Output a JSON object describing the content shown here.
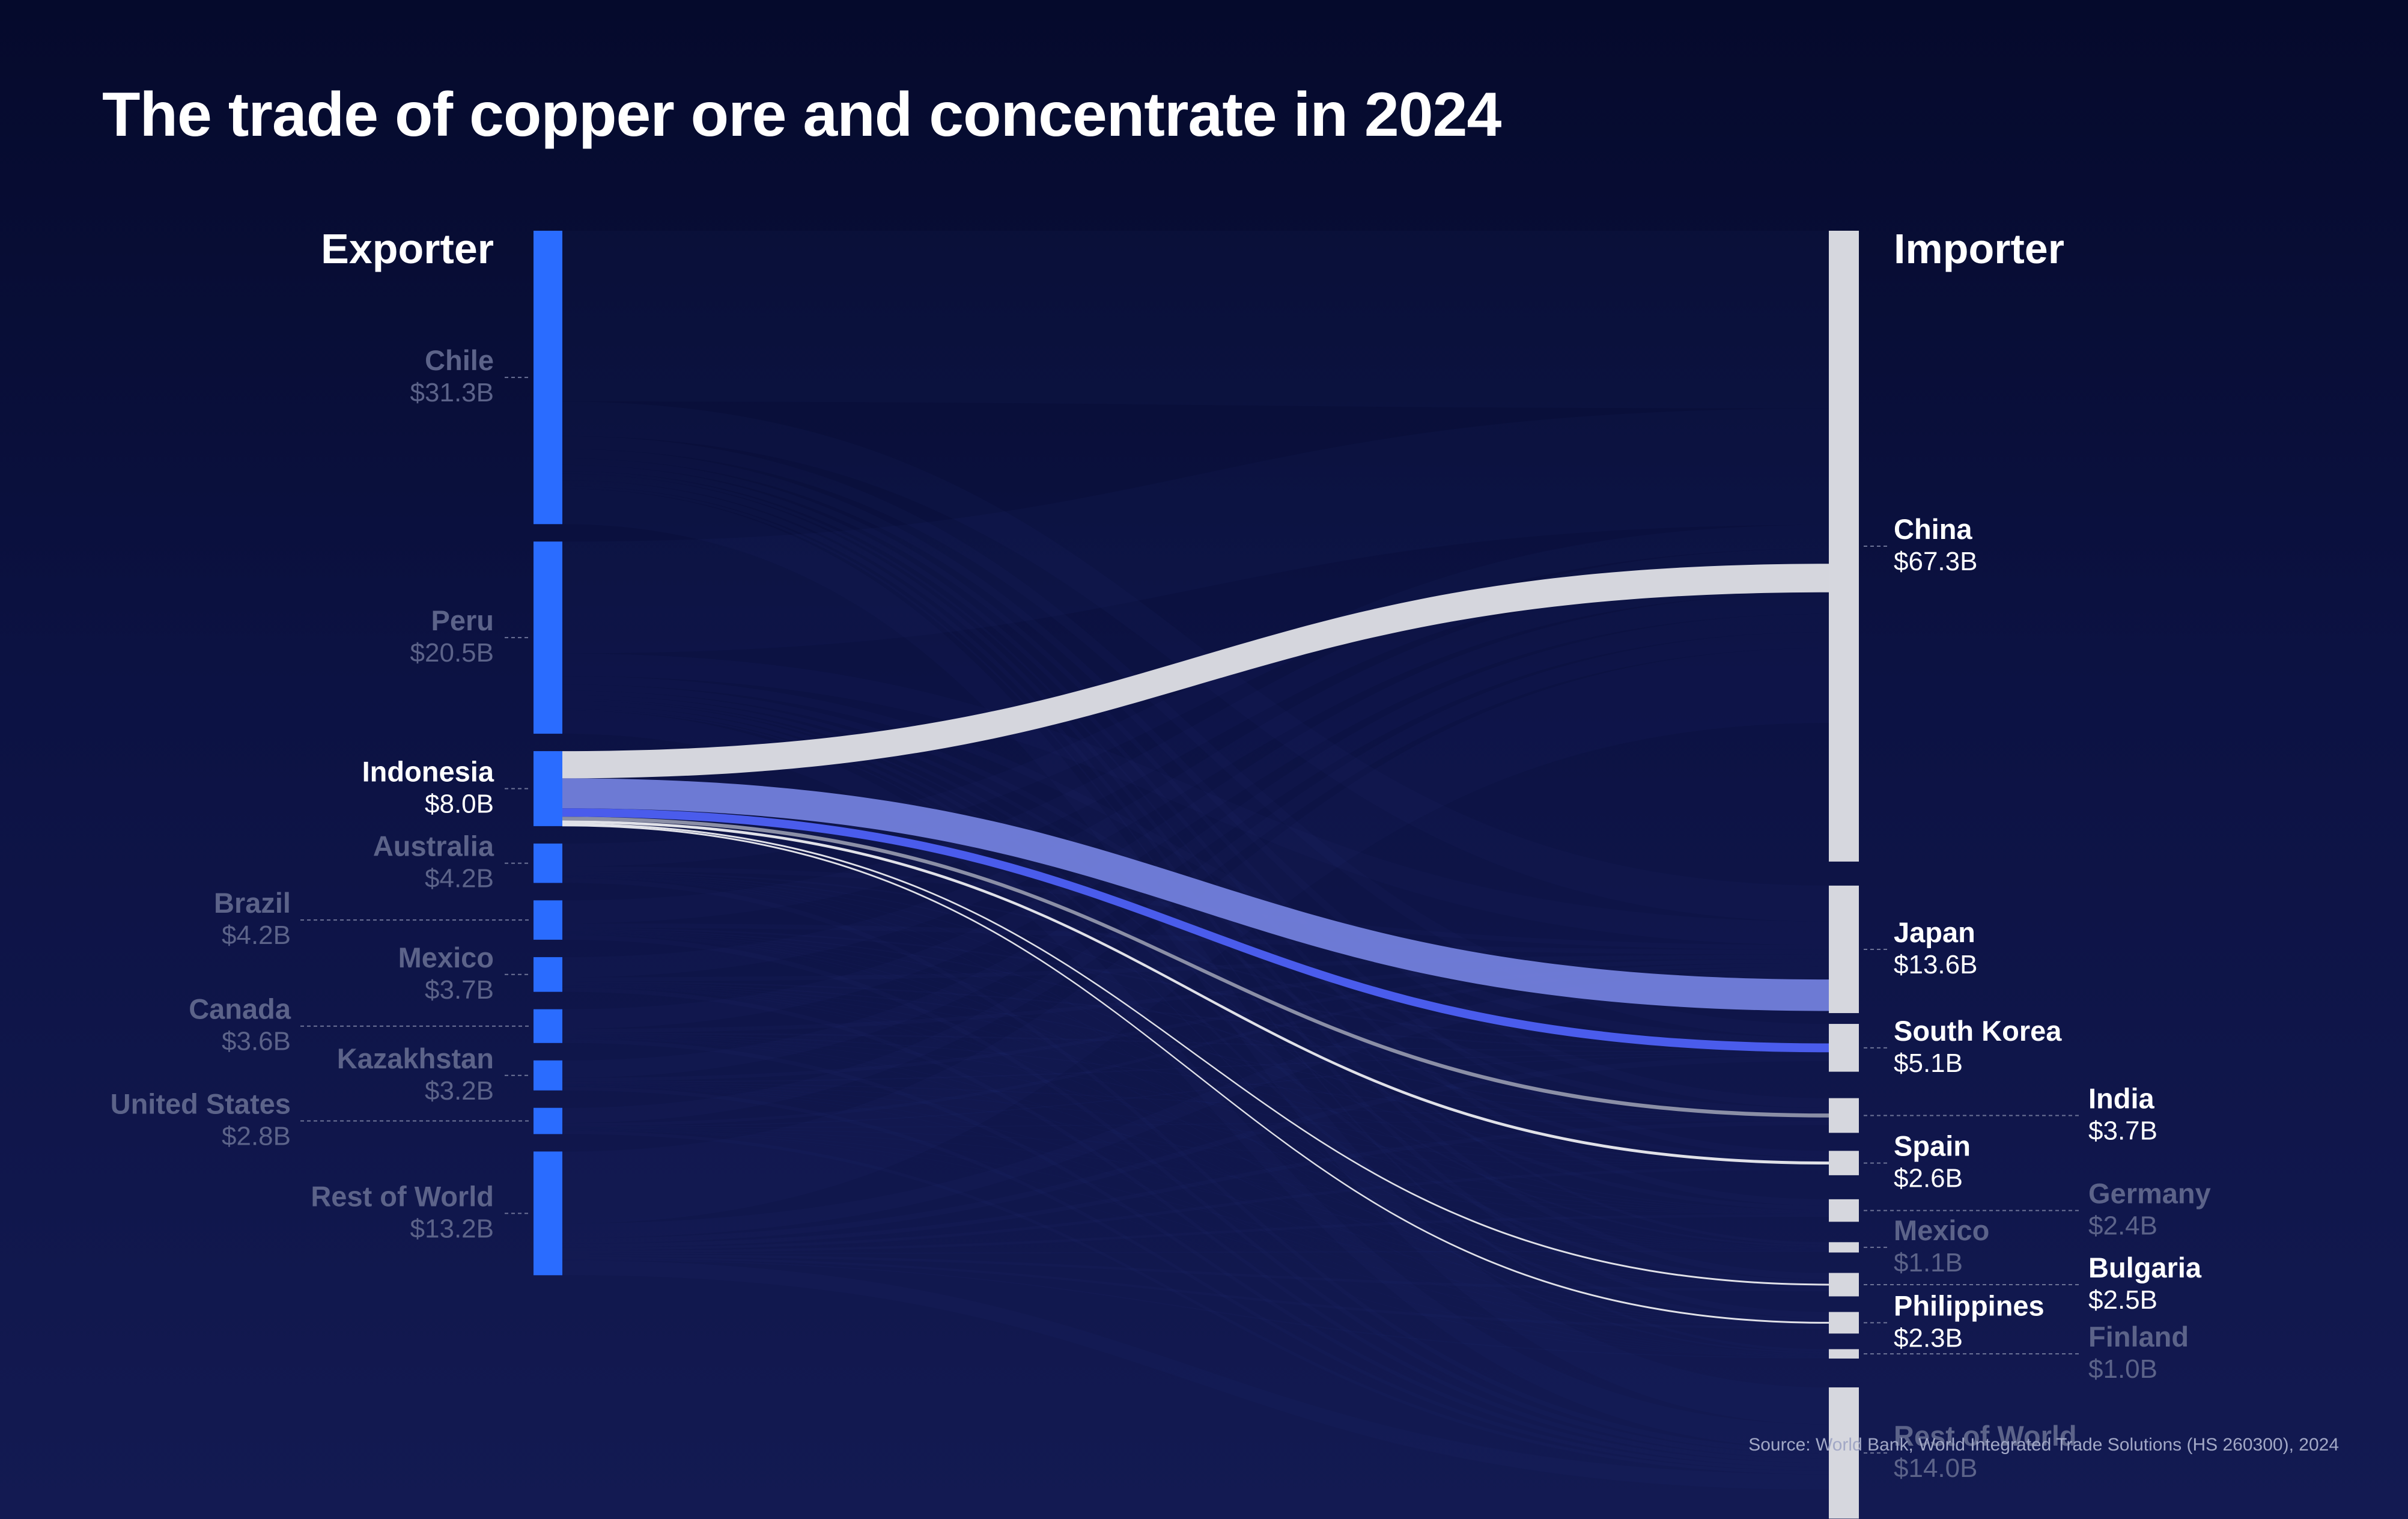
{
  "title": "The trade of copper ore and concentrate in 2024",
  "source": "Source: World Bank, World Integrated Trade Solutions (HS 260300), 2024",
  "colors": {
    "exporter_bar": "#2a6cff",
    "importer_bar": "#d6d7de",
    "label_active": "#ffffff",
    "label_dim": "#5c6389",
    "leader": "#6d7396",
    "flow_china": "#d9dae0",
    "flow_japan": "#7380dc",
    "flow_korea": "#4b5ef0",
    "flow_india": "#8e92a8",
    "flow_thin": "#e4e5ec"
  },
  "chart_data": {
    "type": "sankey",
    "title": "The trade of copper ore and concentrate in 2024",
    "unit": "USD billions",
    "highlighted_exporter": "Indonesia",
    "exporter_header": "Exporter",
    "importer_header": "Importer",
    "exporters": [
      {
        "name": "Chile",
        "value": 31.3,
        "value_label": "$31.3B"
      },
      {
        "name": "Peru",
        "value": 20.5,
        "value_label": "$20.5B"
      },
      {
        "name": "Indonesia",
        "value": 8.0,
        "value_label": "$8.0B"
      },
      {
        "name": "Australia",
        "value": 4.2,
        "value_label": "$4.2B"
      },
      {
        "name": "Brazil",
        "value": 4.2,
        "value_label": "$4.2B"
      },
      {
        "name": "Mexico",
        "value": 3.7,
        "value_label": "$3.7B"
      },
      {
        "name": "Canada",
        "value": 3.6,
        "value_label": "$3.6B"
      },
      {
        "name": "Kazakhstan",
        "value": 3.2,
        "value_label": "$3.2B"
      },
      {
        "name": "United States",
        "value": 2.8,
        "value_label": "$2.8B"
      },
      {
        "name": "Rest of World",
        "value": 13.2,
        "value_label": "$13.2B"
      }
    ],
    "importers": [
      {
        "name": "China",
        "value": 67.3,
        "value_label": "$67.3B"
      },
      {
        "name": "Japan",
        "value": 13.6,
        "value_label": "$13.6B"
      },
      {
        "name": "South Korea",
        "value": 5.1,
        "value_label": "$5.1B"
      },
      {
        "name": "India",
        "value": 3.7,
        "value_label": "$3.7B"
      },
      {
        "name": "Spain",
        "value": 2.6,
        "value_label": "$2.6B"
      },
      {
        "name": "Germany",
        "value": 2.4,
        "value_label": "$2.4B"
      },
      {
        "name": "Mexico",
        "value": 1.1,
        "value_label": "$1.1B"
      },
      {
        "name": "Bulgaria",
        "value": 2.5,
        "value_label": "$2.5B"
      },
      {
        "name": "Philippines",
        "value": 2.3,
        "value_label": "$2.3B"
      },
      {
        "name": "Finland",
        "value": 1.0,
        "value_label": "$1.0B"
      },
      {
        "name": "Rest of World",
        "value": 14.0,
        "value_label": "$14.0B"
      }
    ],
    "highlighted_flows": [
      {
        "from": "Indonesia",
        "to": "China",
        "value": 2.9
      },
      {
        "from": "Indonesia",
        "to": "Japan",
        "value": 3.2
      },
      {
        "from": "Indonesia",
        "to": "South Korea",
        "value": 0.9
      },
      {
        "from": "Indonesia",
        "to": "India",
        "value": 0.4
      },
      {
        "from": "Indonesia",
        "to": "Spain",
        "value": 0.3
      },
      {
        "from": "Indonesia",
        "to": "Bulgaria",
        "value": 0.15
      },
      {
        "from": "Indonesia",
        "to": "Philippines",
        "value": 0.15
      }
    ]
  }
}
